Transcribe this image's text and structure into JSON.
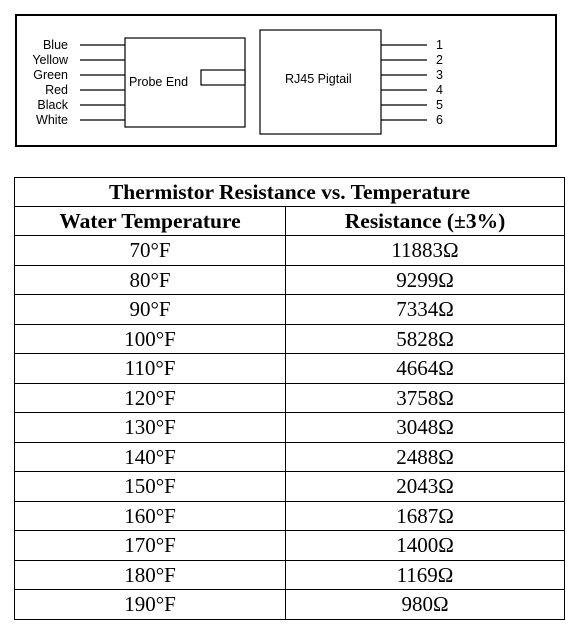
{
  "diagram": {
    "left_wires": [
      "Blue",
      "Yellow",
      "Green",
      "Red",
      "Black",
      "White"
    ],
    "probe_label": "Probe End",
    "pigtail_label": "RJ45 Pigtail",
    "pins": [
      "1",
      "2",
      "3",
      "4",
      "5",
      "6"
    ]
  },
  "table": {
    "title": "Thermistor Resistance vs. Temperature",
    "headers": [
      "Water Temperature",
      "Resistance (±3%)"
    ],
    "rows": [
      [
        "70°F",
        "11883Ω"
      ],
      [
        "80°F",
        "9299Ω"
      ],
      [
        "90°F",
        "7334Ω"
      ],
      [
        "100°F",
        "5828Ω"
      ],
      [
        "110°F",
        "4664Ω"
      ],
      [
        "120°F",
        "3758Ω"
      ],
      [
        "130°F",
        "3048Ω"
      ],
      [
        "140°F",
        "2488Ω"
      ],
      [
        "150°F",
        "2043Ω"
      ],
      [
        "160°F",
        "1687Ω"
      ],
      [
        "170°F",
        "1400Ω"
      ],
      [
        "180°F",
        "1169Ω"
      ],
      [
        "190°F",
        "980Ω"
      ]
    ]
  }
}
